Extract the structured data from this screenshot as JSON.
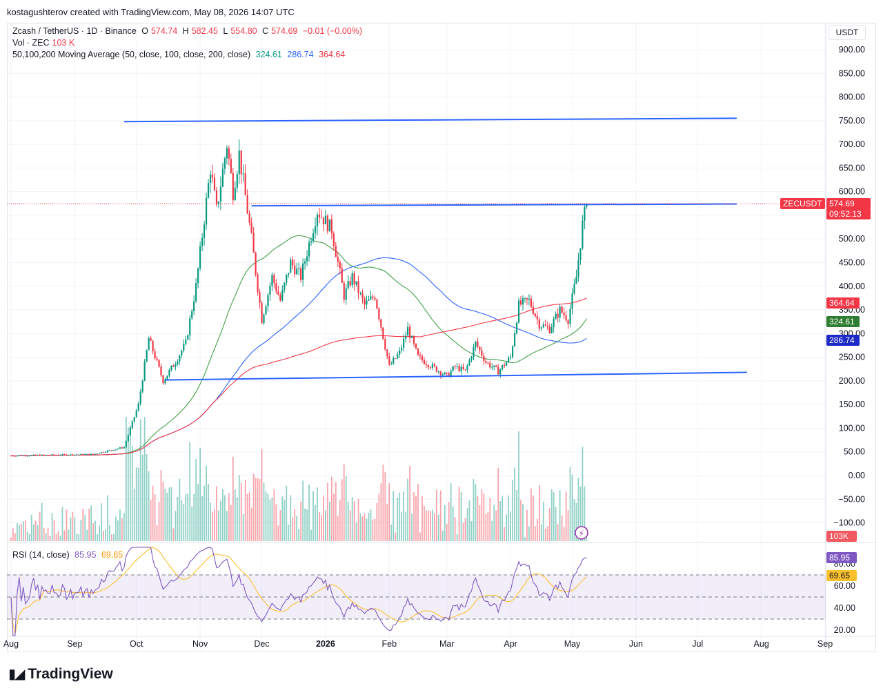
{
  "header": {
    "credit": "kostagushterov created with TradingView.com, May 08, 2026 14:07 UTC"
  },
  "legend": {
    "symbol": "Zcash / TetherUS · 1D · Binance",
    "o_label": "O",
    "o": "574.74",
    "h_label": "H",
    "h": "582.45",
    "l_label": "L",
    "l": "554.80",
    "c_label": "C",
    "c": "574.69",
    "change": "−0.01 (−0.00%)",
    "vol_label": "Vol · ZEC",
    "vol": "103 K",
    "ma_label": "50,100,200 Moving Average (50, close, 100, close, 200, close)",
    "ma50": "324.61",
    "ma100": "286.74",
    "ma200": "364.64",
    "rsi_label": "RSI (14, close)",
    "rsi": "85.95",
    "rsi_ma": "69.65"
  },
  "currency_button": "USDT",
  "price_badges": {
    "symbol_tag": "ZECUSDT",
    "last": "574.69",
    "countdown": "09:52:13",
    "ma200": "364.64",
    "ma50": "324.61",
    "ma100": "286.74",
    "volume": "103K",
    "rsi": "85.95",
    "rsi_ma": "69.65"
  },
  "colors": {
    "up": "#089981",
    "down": "#f23645",
    "ma50": "#43a047",
    "ma100": "#2962ff",
    "ma200": "#f23645",
    "trendline": "#2962ff",
    "rsi": "#7e57c2",
    "rsi_ma": "#fbc02d"
  },
  "brand": "TradingView",
  "chart_data": {
    "type": "candlestick",
    "price_axis": {
      "ticks": [
        "900.00",
        "850.00",
        "800.00",
        "750.00",
        "700.00",
        "650.00",
        "600.00",
        "550.00",
        "500.00",
        "450.00",
        "400.00",
        "350.00",
        "300.00",
        "250.00",
        "200.00",
        "150.00",
        "100.00",
        "50.00",
        "0.00",
        "−50.00",
        "−100.00"
      ],
      "range": [
        -130,
        930
      ]
    },
    "rsi_axis": {
      "ticks": [
        "80.00",
        "60.00",
        "40.00",
        "20.00"
      ],
      "range": [
        15,
        95
      ],
      "bands": [
        70,
        50,
        30
      ]
    },
    "time_axis": [
      "Aug",
      "Sep",
      "Oct",
      "Nov",
      "Dec",
      "2026",
      "Feb",
      "Mar",
      "Apr",
      "May",
      "Jun",
      "Jul",
      "Aug",
      "Sep"
    ],
    "anchors": [
      {
        "d": "2025-08-01",
        "p": 42
      },
      {
        "d": "2025-09-10",
        "p": 45
      },
      {
        "d": "2025-09-25",
        "p": 60
      },
      {
        "d": "2025-10-02",
        "p": 150
      },
      {
        "d": "2025-10-07",
        "p": 290
      },
      {
        "d": "2025-10-14",
        "p": 200
      },
      {
        "d": "2025-10-20",
        "p": 240
      },
      {
        "d": "2025-10-25",
        "p": 280
      },
      {
        "d": "2025-10-30",
        "p": 400
      },
      {
        "d": "2025-11-06",
        "p": 650
      },
      {
        "d": "2025-11-09",
        "p": 560
      },
      {
        "d": "2025-11-14",
        "p": 700
      },
      {
        "d": "2025-11-17",
        "p": 600
      },
      {
        "d": "2025-11-20",
        "p": 680
      },
      {
        "d": "2025-11-26",
        "p": 500
      },
      {
        "d": "2025-12-01",
        "p": 330
      },
      {
        "d": "2025-12-06",
        "p": 420
      },
      {
        "d": "2025-12-10",
        "p": 370
      },
      {
        "d": "2025-12-15",
        "p": 450
      },
      {
        "d": "2025-12-20",
        "p": 420
      },
      {
        "d": "2025-12-28",
        "p": 560
      },
      {
        "d": "2026-01-04",
        "p": 520
      },
      {
        "d": "2026-01-10",
        "p": 380
      },
      {
        "d": "2026-01-14",
        "p": 420
      },
      {
        "d": "2026-01-20",
        "p": 360
      },
      {
        "d": "2026-01-25",
        "p": 380
      },
      {
        "d": "2026-02-01",
        "p": 230
      },
      {
        "d": "2026-02-06",
        "p": 260
      },
      {
        "d": "2026-02-10",
        "p": 310
      },
      {
        "d": "2026-02-15",
        "p": 250
      },
      {
        "d": "2026-02-22",
        "p": 230
      },
      {
        "d": "2026-03-01",
        "p": 210
      },
      {
        "d": "2026-03-05",
        "p": 230
      },
      {
        "d": "2026-03-10",
        "p": 220
      },
      {
        "d": "2026-03-15",
        "p": 280
      },
      {
        "d": "2026-03-20",
        "p": 240
      },
      {
        "d": "2026-03-26",
        "p": 220
      },
      {
        "d": "2026-04-01",
        "p": 250
      },
      {
        "d": "2026-04-05",
        "p": 360
      },
      {
        "d": "2026-04-10",
        "p": 370
      },
      {
        "d": "2026-04-15",
        "p": 320
      },
      {
        "d": "2026-04-20",
        "p": 310
      },
      {
        "d": "2026-04-25",
        "p": 350
      },
      {
        "d": "2026-04-29",
        "p": 330
      },
      {
        "d": "2026-05-03",
        "p": 420
      },
      {
        "d": "2026-05-06",
        "p": 530
      },
      {
        "d": "2026-05-08",
        "p": 574.69
      }
    ],
    "trendlines": [
      {
        "start": {
          "d": "2025-09-25",
          "p": 748
        },
        "end": {
          "d": "2026-07-20",
          "p": 755
        }
      },
      {
        "start": {
          "d": "2025-11-26",
          "p": 570
        },
        "end": {
          "d": "2026-07-20",
          "p": 574
        }
      },
      {
        "start": {
          "d": "2025-10-15",
          "p": 202
        },
        "end": {
          "d": "2026-07-25",
          "p": 218
        }
      }
    ]
  }
}
